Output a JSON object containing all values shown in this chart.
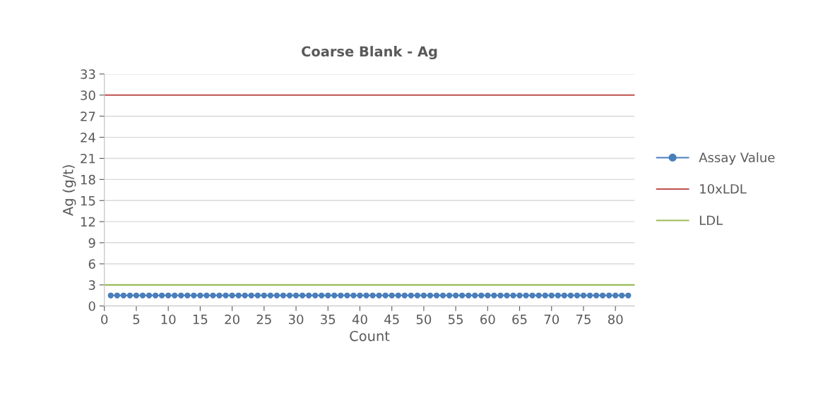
{
  "chart_data": {
    "type": "line",
    "title": "Coarse Blank - Ag",
    "xlabel": "Count",
    "ylabel": "Ag (g/t)",
    "series": [
      {
        "name": "Assay Value",
        "color": "#4a7ebb",
        "x": [
          1,
          2,
          3,
          4,
          5,
          6,
          7,
          8,
          9,
          10,
          11,
          12,
          13,
          14,
          15,
          16,
          17,
          18,
          19,
          20,
          21,
          22,
          23,
          24,
          25,
          26,
          27,
          28,
          29,
          30,
          31,
          32,
          33,
          34,
          35,
          36,
          37,
          38,
          39,
          40,
          41,
          42,
          43,
          44,
          45,
          46,
          47,
          48,
          49,
          50,
          51,
          52,
          53,
          54,
          55,
          56,
          57,
          58,
          59,
          60,
          61,
          62,
          63,
          64,
          65,
          66,
          67,
          68,
          69,
          70,
          71,
          72,
          73,
          74,
          75,
          76,
          77,
          78,
          79,
          80,
          81,
          82
        ],
        "values": [
          1.5,
          1.5,
          1.5,
          1.5,
          1.5,
          1.5,
          1.5,
          1.5,
          1.5,
          1.5,
          1.5,
          1.5,
          1.5,
          1.5,
          1.5,
          1.5,
          1.5,
          1.5,
          1.5,
          1.5,
          1.5,
          1.5,
          1.5,
          1.5,
          1.5,
          1.5,
          1.5,
          1.5,
          1.5,
          1.5,
          1.5,
          1.5,
          1.5,
          1.5,
          1.5,
          1.5,
          1.5,
          1.5,
          1.5,
          1.5,
          1.5,
          1.5,
          1.5,
          1.5,
          1.5,
          1.5,
          1.5,
          1.5,
          1.5,
          1.5,
          1.5,
          1.5,
          1.5,
          1.5,
          1.5,
          1.5,
          1.5,
          1.5,
          1.5,
          1.5,
          1.5,
          1.5,
          1.5,
          1.5,
          1.5,
          1.5,
          1.5,
          1.5,
          1.5,
          1.5,
          1.5,
          1.5,
          1.5,
          1.5,
          1.5,
          1.5,
          1.5,
          1.5,
          1.5,
          1.5,
          1.5,
          1.5
        ]
      },
      {
        "name": "10xLDL",
        "color": "#c0504d",
        "marker": "none",
        "x": [
          0,
          83
        ],
        "values": [
          30,
          30
        ]
      },
      {
        "name": "LDL",
        "color": "#9bbb59",
        "marker": "none",
        "x": [
          0,
          83
        ],
        "values": [
          3,
          3
        ]
      }
    ],
    "xlim": [
      0,
      83
    ],
    "xticks": [
      0,
      5,
      10,
      15,
      20,
      25,
      30,
      35,
      40,
      45,
      50,
      55,
      60,
      65,
      70,
      75,
      80
    ],
    "ylim": [
      0,
      33
    ],
    "yticks": [
      0,
      3,
      6,
      9,
      12,
      15,
      18,
      21,
      24,
      27,
      30,
      33
    ],
    "grid": "y",
    "legend": "right",
    "marker": "circle",
    "line_style": "solid"
  }
}
